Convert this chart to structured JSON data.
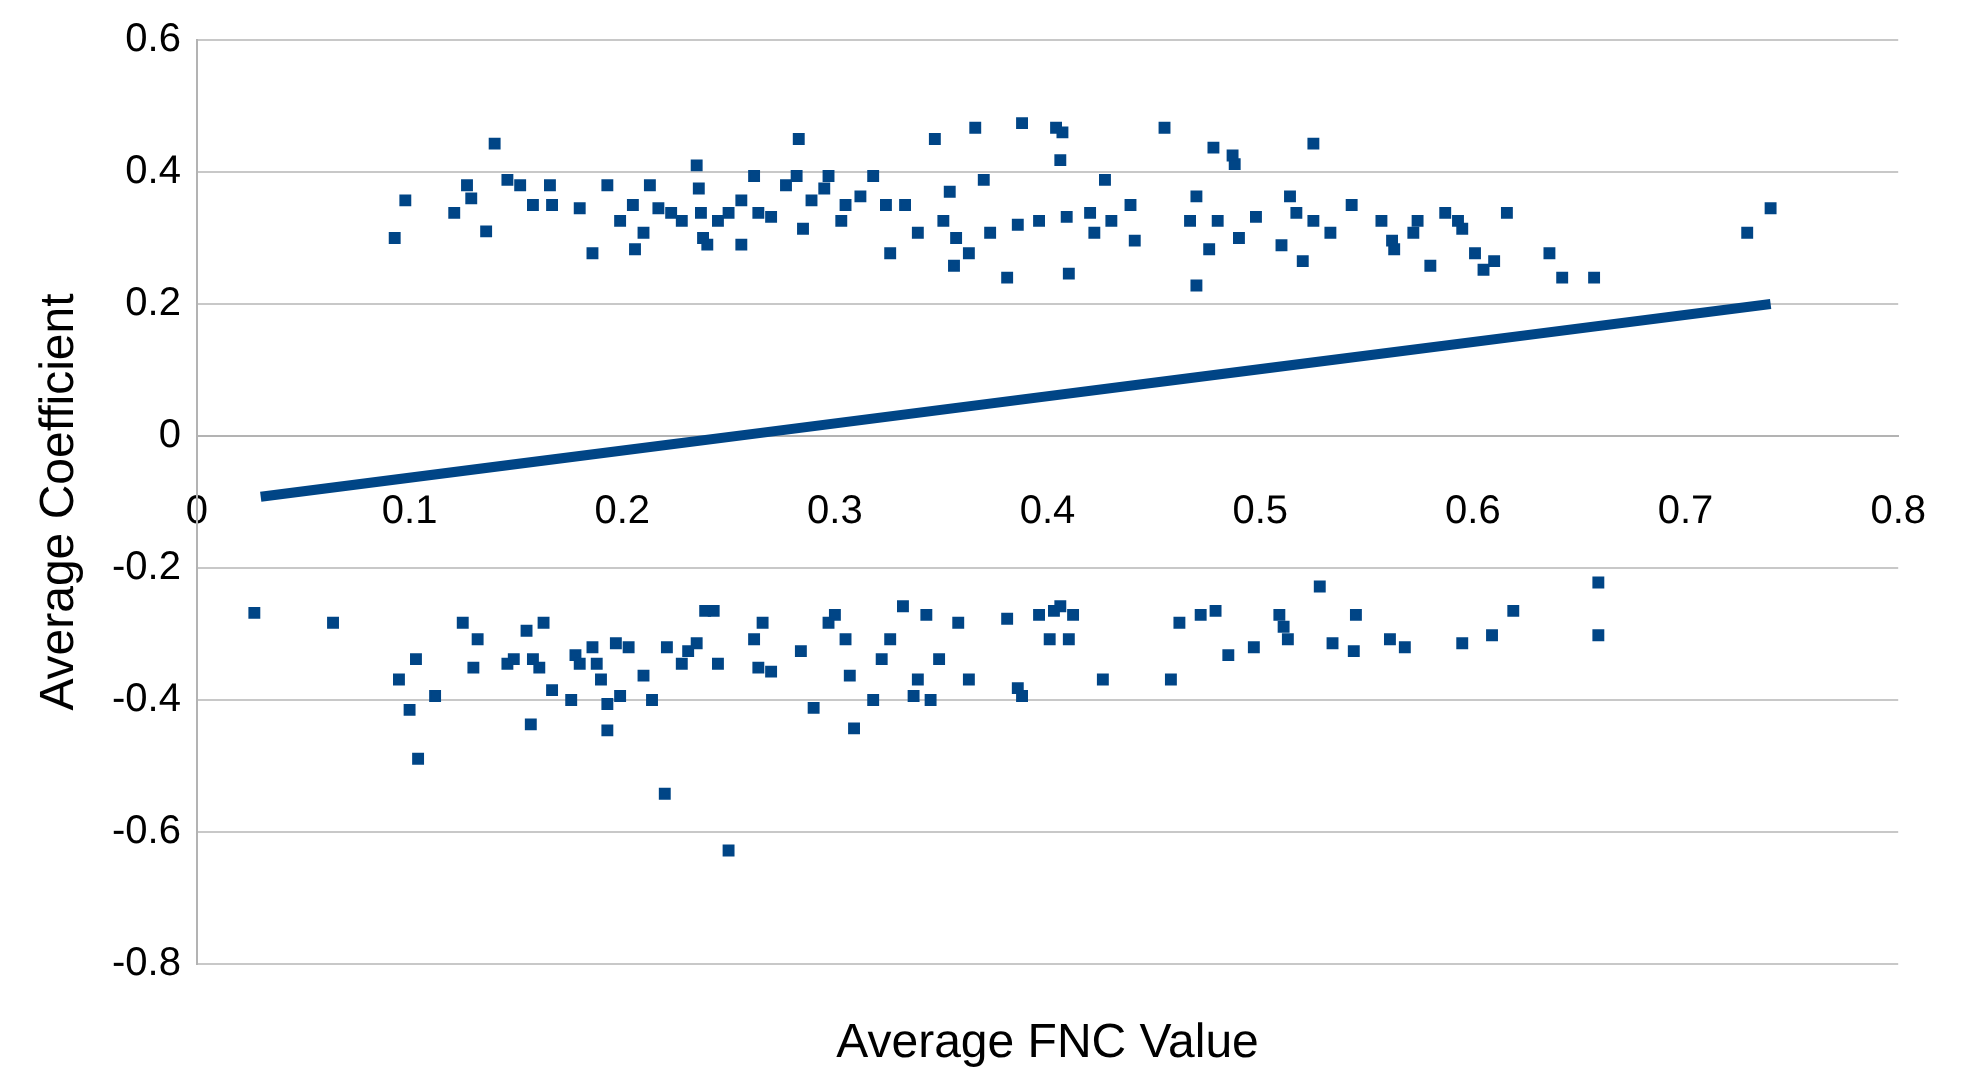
{
  "chart_data": {
    "type": "scatter",
    "xlabel": "Average FNC Value",
    "ylabel": "Average Coefficient",
    "xlim": [
      0,
      0.8
    ],
    "ylim": [
      -0.8,
      0.6
    ],
    "xticks": [
      0,
      0.1,
      0.2,
      0.3,
      0.4,
      0.5,
      0.6,
      0.7,
      0.8
    ],
    "yticks": [
      -0.8,
      -0.6,
      -0.4,
      -0.2,
      0,
      0.2,
      0.4,
      0.6
    ],
    "grid": "y",
    "marker": "square",
    "legend": false,
    "series": [
      {
        "color": "#004586",
        "x": [
          0.093,
          0.098,
          0.121,
          0.127,
          0.129,
          0.136,
          0.14,
          0.146,
          0.152,
          0.158,
          0.166,
          0.167,
          0.18,
          0.186,
          0.193,
          0.199,
          0.205,
          0.206,
          0.21,
          0.213,
          0.217,
          0.223,
          0.228,
          0.235,
          0.236,
          0.237,
          0.238,
          0.24,
          0.245,
          0.25,
          0.256,
          0.256,
          0.262,
          0.264,
          0.27,
          0.277,
          0.282,
          0.283,
          0.285,
          0.289,
          0.295,
          0.297,
          0.303,
          0.305,
          0.312,
          0.318,
          0.324,
          0.326,
          0.333,
          0.339,
          0.347,
          0.351,
          0.354,
          0.356,
          0.357,
          0.363,
          0.366,
          0.37,
          0.373,
          0.381,
          0.386,
          0.388,
          0.396,
          0.404,
          0.406,
          0.407,
          0.409,
          0.41,
          0.42,
          0.422,
          0.427,
          0.43,
          0.439,
          0.441,
          0.455,
          0.467,
          0.47,
          0.47,
          0.476,
          0.478,
          0.48,
          0.487,
          0.488,
          0.49,
          0.498,
          0.51,
          0.514,
          0.517,
          0.525,
          0.52,
          0.525,
          0.533,
          0.543,
          0.557,
          0.562,
          0.563,
          0.572,
          0.574,
          0.58,
          0.587,
          0.593,
          0.595,
          0.601,
          0.605,
          0.61,
          0.616,
          0.636,
          0.642,
          0.657,
          0.729,
          0.74
        ],
        "values": [
          0.3,
          0.357,
          0.338,
          0.38,
          0.36,
          0.31,
          0.443,
          0.388,
          0.38,
          0.35,
          0.38,
          0.35,
          0.345,
          0.277,
          0.38,
          0.326,
          0.35,
          0.283,
          0.308,
          0.38,
          0.345,
          0.338,
          0.326,
          0.41,
          0.375,
          0.338,
          0.3,
          0.29,
          0.326,
          0.338,
          0.29,
          0.357,
          0.394,
          0.338,
          0.332,
          0.38,
          0.394,
          0.45,
          0.314,
          0.357,
          0.375,
          0.394,
          0.326,
          0.35,
          0.363,
          0.394,
          0.35,
          0.277,
          0.35,
          0.308,
          0.45,
          0.326,
          0.37,
          0.258,
          0.3,
          0.277,
          0.467,
          0.388,
          0.308,
          0.24,
          0.32,
          0.474,
          0.326,
          0.467,
          0.418,
          0.46,
          0.332,
          0.246,
          0.338,
          0.308,
          0.388,
          0.326,
          0.35,
          0.296,
          0.467,
          0.326,
          0.363,
          0.228,
          0.283,
          0.437,
          0.326,
          0.425,
          0.412,
          0.3,
          0.332,
          0.289,
          0.363,
          0.338,
          0.443,
          0.265,
          0.326,
          0.308,
          0.35,
          0.326,
          0.296,
          0.283,
          0.308,
          0.326,
          0.258,
          0.338,
          0.326,
          0.314,
          0.277,
          0.252,
          0.265,
          0.338,
          0.277,
          0.24,
          0.24,
          0.308,
          0.345
        ]
      },
      {
        "color": "#004586",
        "x": [
          0.027,
          0.064,
          0.095,
          0.1,
          0.103,
          0.104,
          0.112,
          0.125,
          0.13,
          0.132,
          0.146,
          0.149,
          0.155,
          0.157,
          0.158,
          0.161,
          0.163,
          0.167,
          0.176,
          0.178,
          0.18,
          0.186,
          0.188,
          0.19,
          0.193,
          0.193,
          0.197,
          0.199,
          0.203,
          0.21,
          0.214,
          0.22,
          0.221,
          0.228,
          0.231,
          0.235,
          0.239,
          0.243,
          0.245,
          0.25,
          0.262,
          0.266,
          0.264,
          0.27,
          0.284,
          0.29,
          0.297,
          0.3,
          0.305,
          0.307,
          0.309,
          0.318,
          0.322,
          0.326,
          0.332,
          0.337,
          0.339,
          0.343,
          0.345,
          0.349,
          0.358,
          0.363,
          0.381,
          0.386,
          0.388,
          0.396,
          0.401,
          0.403,
          0.406,
          0.41,
          0.412,
          0.426,
          0.458,
          0.462,
          0.472,
          0.479,
          0.485,
          0.497,
          0.509,
          0.513,
          0.511,
          0.528,
          0.534,
          0.545,
          0.544,
          0.561,
          0.568,
          0.595,
          0.609,
          0.619,
          0.659,
          0.659
        ],
        "values": [
          -0.268,
          -0.283,
          -0.369,
          -0.415,
          -0.338,
          -0.489,
          -0.394,
          -0.283,
          -0.351,
          -0.308,
          -0.345,
          -0.338,
          -0.295,
          -0.437,
          -0.338,
          -0.351,
          -0.283,
          -0.385,
          -0.4,
          -0.332,
          -0.345,
          -0.32,
          -0.345,
          -0.369,
          -0.406,
          -0.446,
          -0.314,
          -0.394,
          -0.32,
          -0.363,
          -0.4,
          -0.542,
          -0.32,
          -0.345,
          -0.326,
          -0.314,
          -0.265,
          -0.265,
          -0.345,
          -0.628,
          -0.308,
          -0.283,
          -0.351,
          -0.357,
          -0.326,
          -0.412,
          -0.283,
          -0.271,
          -0.308,
          -0.363,
          -0.443,
          -0.4,
          -0.338,
          -0.308,
          -0.258,
          -0.394,
          -0.369,
          -0.271,
          -0.4,
          -0.338,
          -0.283,
          -0.369,
          -0.277,
          -0.382,
          -0.394,
          -0.271,
          -0.308,
          -0.265,
          -0.258,
          -0.308,
          -0.271,
          -0.369,
          -0.369,
          -0.283,
          -0.271,
          -0.265,
          -0.332,
          -0.32,
          -0.271,
          -0.308,
          -0.289,
          -0.228,
          -0.314,
          -0.271,
          -0.326,
          -0.308,
          -0.32,
          -0.314,
          -0.302,
          -0.265,
          -0.222,
          -0.302
        ]
      },
      {
        "type": "line",
        "color": "#004586",
        "marker": "none",
        "x": [
          0.03,
          0.74
        ],
        "values": [
          -0.092,
          0.2
        ]
      }
    ]
  }
}
